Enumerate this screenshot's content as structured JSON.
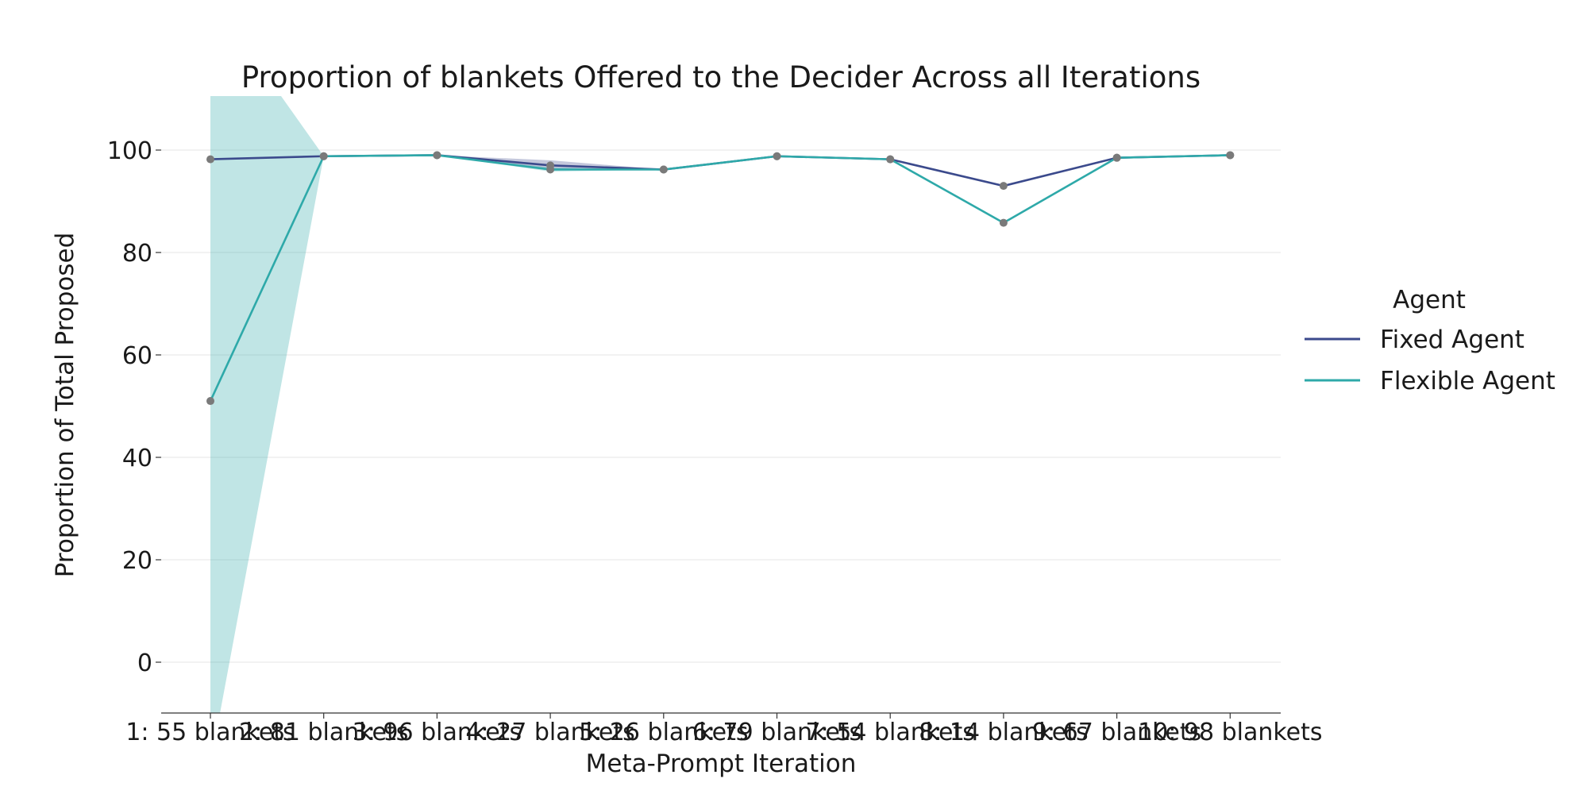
{
  "chart_data": {
    "type": "line",
    "title": "Proportion of blankets Offered to the Decider Across all Iterations",
    "xlabel": "Meta-Prompt Iteration",
    "ylabel": "Proportion of Total Proposed",
    "categories": [
      "1: 55 blankets",
      "2: 81 blankets",
      "3: 96 blankets",
      "4: 27 blankets",
      "5: 26 blankets",
      "6: 79 blankets",
      "7: 54 blankets",
      "8: 14 blankets",
      "9: 67 blankets",
      "10: 98 blankets"
    ],
    "ylim": [
      -10,
      110
    ],
    "yticks": [
      0,
      20,
      40,
      60,
      80,
      100
    ],
    "grid": "horizontal",
    "legend": {
      "title": "Agent",
      "position": "right"
    },
    "series": [
      {
        "name": "Fixed Agent",
        "color": "#3b4a8c",
        "values": [
          98.2,
          98.8,
          99.0,
          97.0,
          96.2,
          98.8,
          98.2,
          93.0,
          98.5,
          99.0
        ],
        "ci_low": [
          98.2,
          98.8,
          99.0,
          96.0,
          96.2,
          98.8,
          98.2,
          93.0,
          98.5,
          99.0
        ],
        "ci_high": [
          98.2,
          98.8,
          99.0,
          98.0,
          96.2,
          98.8,
          98.2,
          93.0,
          98.5,
          99.0
        ]
      },
      {
        "name": "Flexible Agent",
        "color": "#2ea9a9",
        "values": [
          51.0,
          98.8,
          99.0,
          96.2,
          96.2,
          98.8,
          98.2,
          85.8,
          98.5,
          99.0
        ],
        "ci_low": [
          -20.0,
          98.8,
          99.0,
          95.8,
          96.2,
          98.8,
          98.2,
          85.8,
          98.5,
          99.0
        ],
        "ci_high": [
          130.0,
          98.8,
          99.0,
          96.6,
          96.2,
          98.8,
          98.2,
          85.8,
          98.5,
          99.0
        ]
      }
    ],
    "marker_color": "#7a7a7a"
  }
}
